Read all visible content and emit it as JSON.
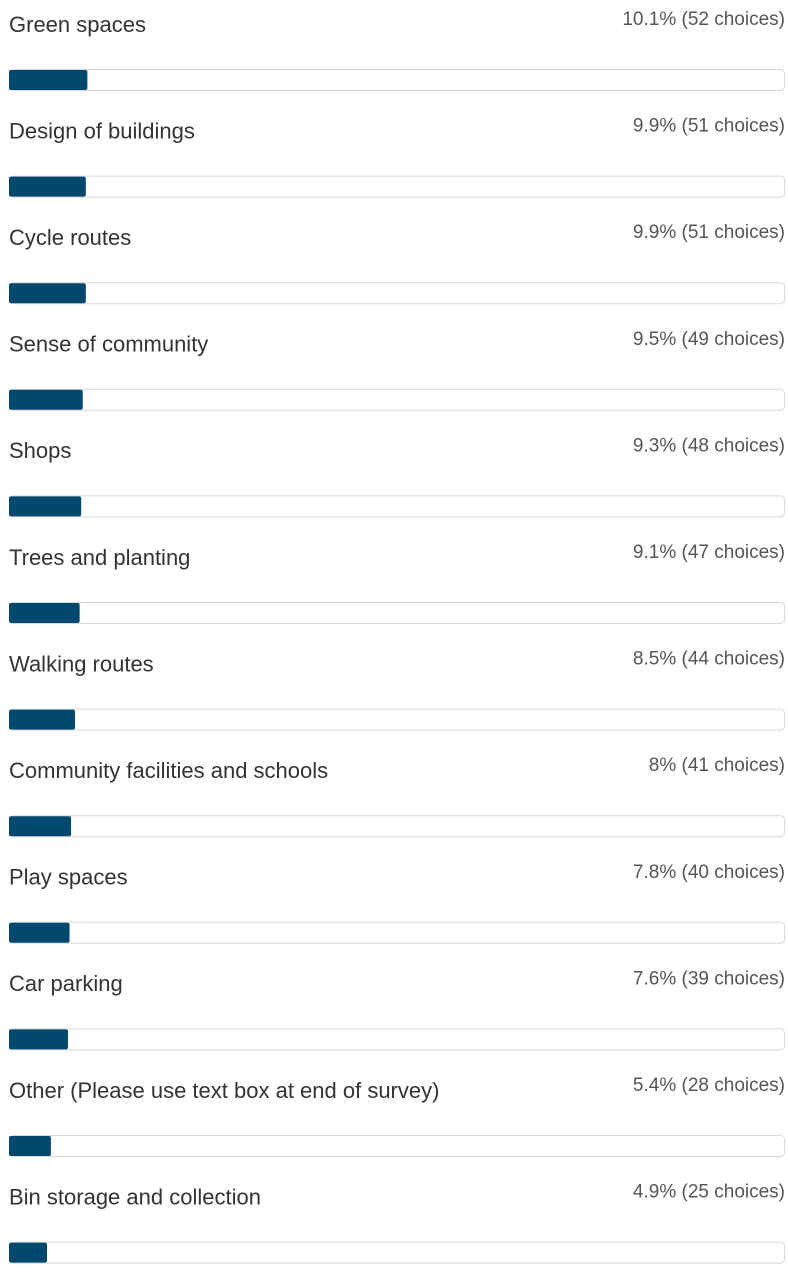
{
  "chart_data": {
    "type": "bar",
    "orientation": "horizontal",
    "categories": [
      "Green spaces",
      "Design of buildings",
      "Cycle routes",
      "Sense of community",
      "Shops",
      "Trees and planting",
      "Walking routes",
      "Community facilities and schools",
      "Play spaces",
      "Car parking",
      "Other (Please use text box at end of survey)",
      "Bin storage and collection"
    ],
    "values": [
      10.1,
      9.9,
      9.9,
      9.5,
      9.3,
      9.1,
      8.5,
      8,
      7.8,
      7.6,
      5.4,
      4.9
    ],
    "value_labels": [
      "10.1% (52 choices)",
      "9.9% (51 choices)",
      "9.9% (51 choices)",
      "9.5% (49 choices)",
      "9.3% (48 choices)",
      "9.1% (47 choices)",
      "8.5% (44 choices)",
      "8% (41 choices)",
      "7.8% (40 choices)",
      "7.6% (39 choices)",
      "5.4% (28 choices)",
      "4.9% (25 choices)"
    ],
    "color": "#00486d",
    "xlim": [
      0,
      100
    ]
  }
}
